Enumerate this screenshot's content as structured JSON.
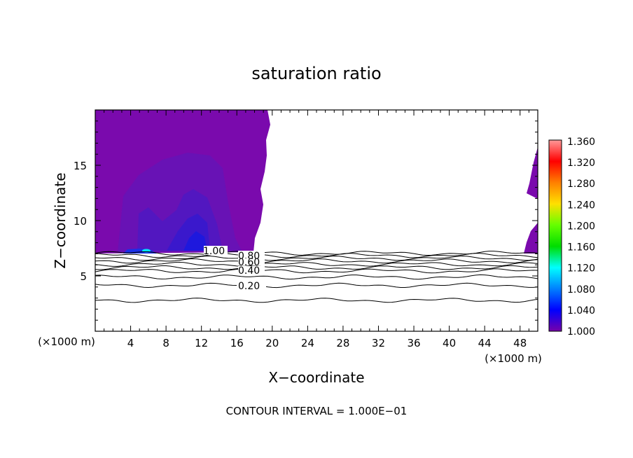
{
  "chart_data": {
    "type": "contour",
    "title": "saturation ratio",
    "xlabel": "X−coordinate",
    "ylabel": "Z−coordinate",
    "x_unit": "(×1000 m)",
    "x_unit_right": "(×1000 m)",
    "footer": "CONTOUR INTERVAL = 1.000E−01",
    "xlim": [
      0,
      50
    ],
    "ylim": [
      0,
      20
    ],
    "xticks": [
      "4",
      "8",
      "12",
      "16",
      "20",
      "24",
      "28",
      "32",
      "36",
      "40",
      "44",
      "48"
    ],
    "yticks": [
      "5",
      "10",
      "15"
    ],
    "colorbar": {
      "ticks": [
        "1.360",
        "1.320",
        "1.280",
        "1.240",
        "1.200",
        "1.160",
        "1.120",
        "1.080",
        "1.040",
        "1.000"
      ],
      "range": [
        1.0,
        1.36
      ],
      "colors": [
        "#ff9999",
        "#ff0000",
        "#ff7f00",
        "#ffe000",
        "#66ff00",
        "#00dd00",
        "#00ffff",
        "#0080ff",
        "#0000ff",
        "#7700aa"
      ]
    },
    "contour_labels": [
      {
        "text": "1.00",
        "x": 13.5,
        "y": 7.0
      },
      {
        "text": "0.80",
        "x": 17.5,
        "y": 6.7
      },
      {
        "text": "0.60",
        "x": 17.5,
        "y": 6.1
      },
      {
        "text": "0.40",
        "x": 17.5,
        "y": 5.5
      },
      {
        "text": "0.20",
        "x": 17.5,
        "y": 4.1
      }
    ],
    "contour_levels_below_cloud": [
      {
        "level": "1.00",
        "z": 7.05
      },
      {
        "level": "0.90",
        "z": 6.85
      },
      {
        "level": "0.80",
        "z": 6.6
      },
      {
        "level": "0.70",
        "z": 6.35
      },
      {
        "level": "0.60",
        "z": 6.05
      },
      {
        "level": "0.50",
        "z": 5.75
      },
      {
        "level": "0.40",
        "z": 5.45
      },
      {
        "level": "0.30",
        "z": 4.9
      },
      {
        "level": "0.20",
        "z": 4.15
      },
      {
        "level": "0.10",
        "z": 2.8
      }
    ]
  }
}
